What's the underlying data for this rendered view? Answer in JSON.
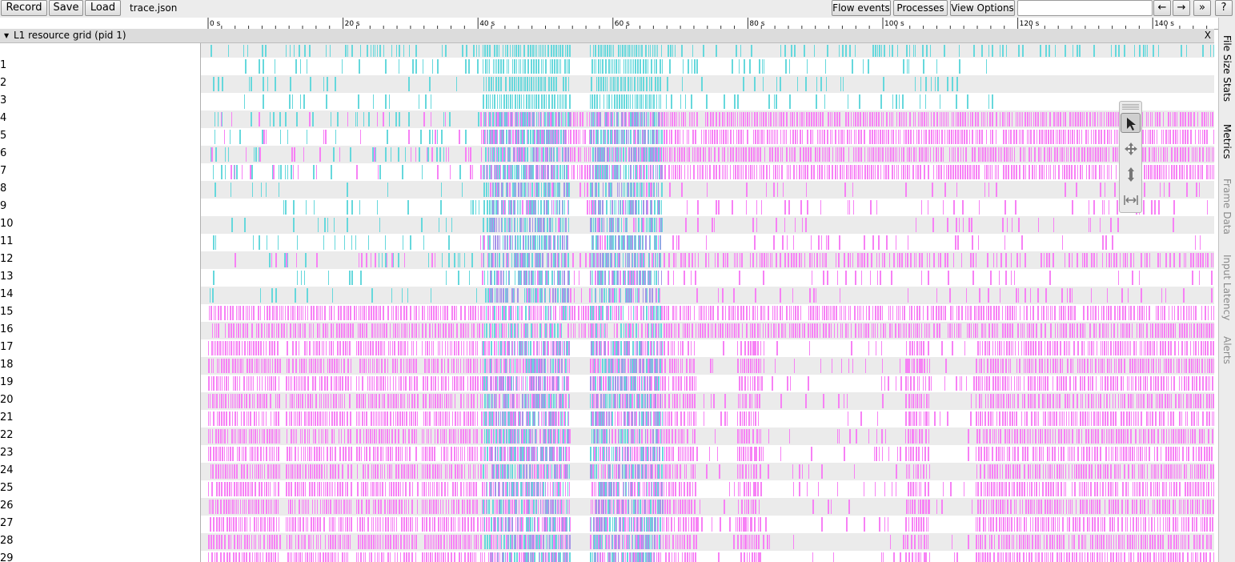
{
  "toolbar": {
    "record_label": "Record",
    "save_label": "Save",
    "load_label": "Load",
    "filename": "trace.json",
    "flow_events_label": "Flow events",
    "processes_label": "Processes",
    "view_options_label": "View Options",
    "search_value": "",
    "nav_prev_label": "←",
    "nav_next_label": "→",
    "nav_more_label": "»",
    "help_label": "?"
  },
  "ruler": {
    "tick_labels": [
      "0 s",
      "20 s",
      "40 s",
      "60 s",
      "80 s",
      "100 s",
      "120 s",
      "140 s"
    ]
  },
  "process": {
    "title": "L1 resource grid (pid 1)",
    "close_label": "X"
  },
  "rows": [
    "1",
    "2",
    "3",
    "4",
    "5",
    "6",
    "7",
    "8",
    "9",
    "10",
    "11",
    "12",
    "13",
    "14",
    "15",
    "16",
    "17",
    "18",
    "19",
    "20",
    "21",
    "22",
    "23",
    "24",
    "25",
    "26",
    "27",
    "28",
    "29"
  ],
  "sidebar": {
    "tabs": [
      {
        "label": "File Size Stats",
        "state": "active"
      },
      {
        "label": "Metrics",
        "state": "active"
      },
      {
        "label": "Frame Data",
        "state": "inactive"
      },
      {
        "label": "Input Latency",
        "state": "inactive"
      },
      {
        "label": "Alerts",
        "state": "inactive"
      }
    ]
  },
  "mouse_modes": [
    {
      "icon": "cursor-select-icon",
      "active": true
    },
    {
      "icon": "pan-arrows-icon",
      "active": false
    },
    {
      "icon": "zoom-vertical-icon",
      "active": false
    },
    {
      "icon": "timing-range-icon",
      "active": false
    }
  ],
  "colors": {
    "cyan_event": "#66d8dc",
    "magenta_event": "#f781f5",
    "mixed_event": "#a694e8",
    "row_stripe": "#ebebeb"
  }
}
